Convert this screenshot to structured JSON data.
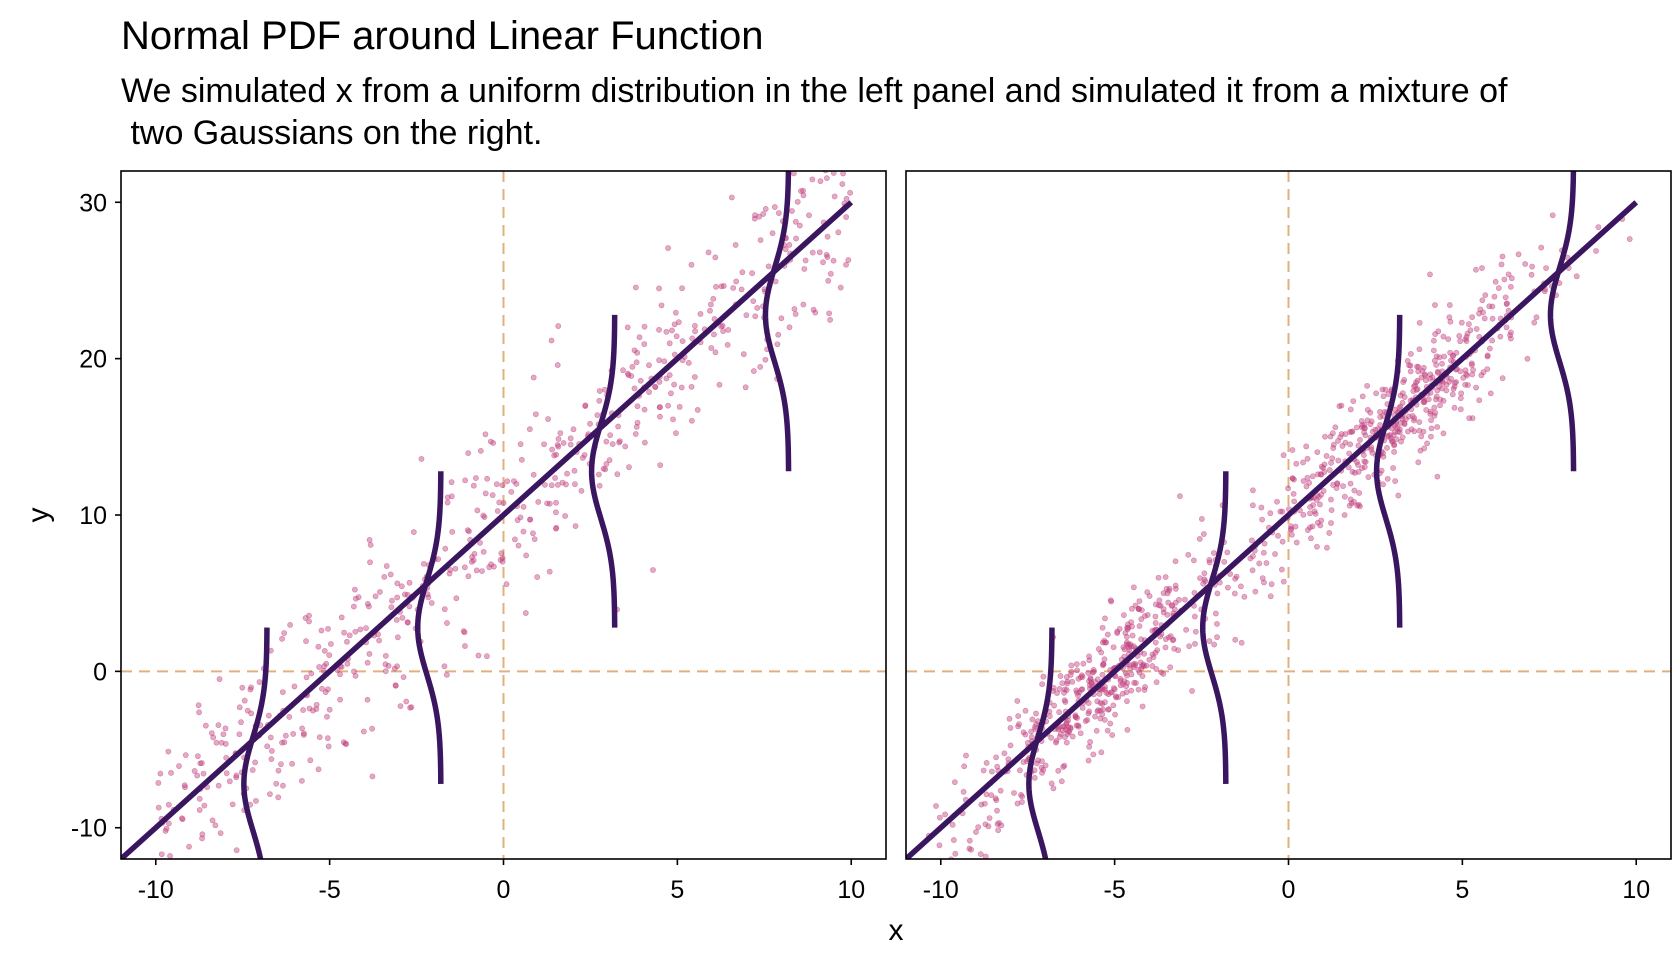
{
  "chart_data": {
    "type": "scatter",
    "title": "Normal PDF around Linear Function",
    "subtitle": "We simulated x from a uniform distribution in the left panel and simulated it from a mixture of\n two Gaussians on the right.",
    "xlabel": "x",
    "ylabel": "y",
    "xlim": [
      -11,
      11
    ],
    "ylim": [
      -12,
      32
    ],
    "x_ticks": [
      -10,
      -5,
      0,
      5,
      10
    ],
    "y_ticks": [
      -10,
      0,
      10,
      20,
      30
    ],
    "line": {
      "intercept": 10,
      "slope": 2,
      "x_range": [
        -11,
        10
      ]
    },
    "pdf_curves": {
      "centers_x": [
        -8.6,
        -3.6,
        1.4,
        6.4
      ],
      "sigma": 3,
      "half_span": 10
    },
    "reference_lines": {
      "x": 0,
      "y": 0
    },
    "panels": [
      {
        "name": "uniform x",
        "x_distribution": "uniform",
        "x_range": [
          -10,
          10
        ],
        "n": 600,
        "noise_sd": 3
      },
      {
        "name": "mixture of two Gaussians",
        "x_distribution": "gaussian mixture",
        "components": [
          {
            "mean": -5.5,
            "sd": 2.0
          },
          {
            "mean": 3.0,
            "sd": 2.2
          }
        ],
        "n": 1000,
        "noise_sd": 1.9
      }
    ],
    "colors": {
      "line": "#3b1660",
      "points": "#c0407e",
      "reference": "#e2b07f",
      "axis": "#000000"
    },
    "grid": false
  }
}
